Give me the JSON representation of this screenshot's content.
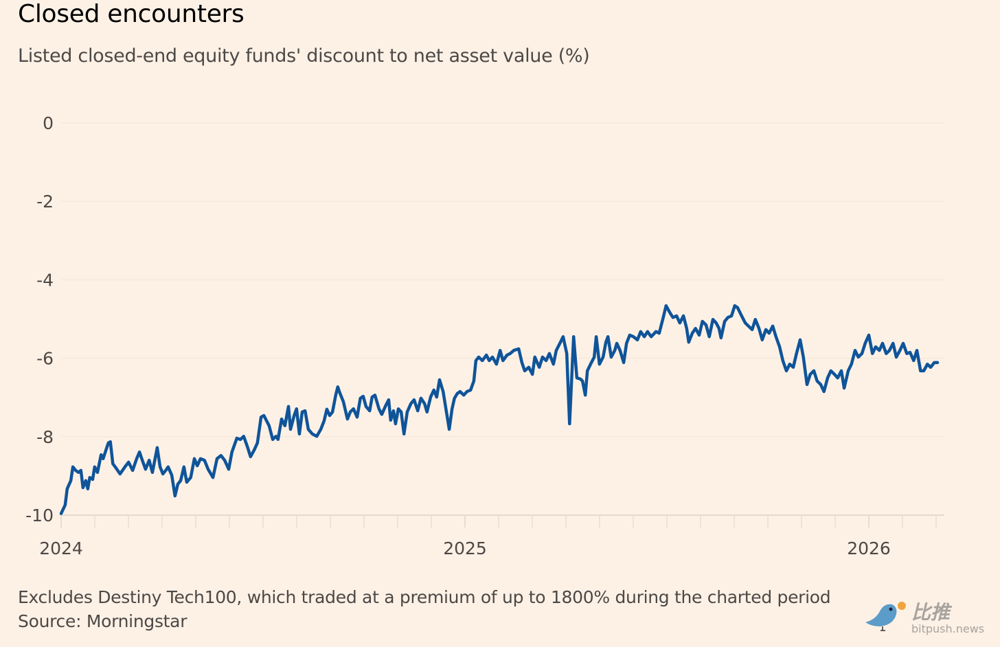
{
  "chart_data": {
    "type": "line",
    "title": "Closed encounters",
    "subtitle": "Listed closed-end equity funds' discount to net asset value (%)",
    "note": "Excludes Destiny Tech100, which traded at a premium of up to 1800% during the charted period",
    "source": "Source: Morningstar",
    "xlabel": "",
    "ylabel": "",
    "xlim": [
      2024,
      2026.19
    ],
    "ylim": [
      -10,
      0
    ],
    "x_ticks": [
      "2024",
      "2025",
      "2026"
    ],
    "y_ticks": [
      "0",
      "-2",
      "-4",
      "-6",
      "-8",
      "-10"
    ],
    "grid": "horizontal",
    "line_color": "#0f5499",
    "series": [
      {
        "points": [
          [
            2024.0,
            -9.96
          ],
          [
            2024.01,
            -9.74
          ],
          [
            2024.015,
            -9.33
          ],
          [
            2024.024,
            -9.12
          ],
          [
            2024.029,
            -8.77
          ],
          [
            2024.036,
            -8.86
          ],
          [
            2024.043,
            -8.91
          ],
          [
            2024.049,
            -8.86
          ],
          [
            2024.054,
            -9.3
          ],
          [
            2024.061,
            -9.12
          ],
          [
            2024.066,
            -9.33
          ],
          [
            2024.071,
            -9.04
          ],
          [
            2024.078,
            -9.09
          ],
          [
            2024.083,
            -8.77
          ],
          [
            2024.09,
            -8.91
          ],
          [
            2024.099,
            -8.46
          ],
          [
            2024.104,
            -8.56
          ],
          [
            2024.111,
            -8.34
          ],
          [
            2024.117,
            -8.16
          ],
          [
            2024.122,
            -8.13
          ],
          [
            2024.128,
            -8.69
          ],
          [
            2024.134,
            -8.77
          ],
          [
            2024.146,
            -8.95
          ],
          [
            2024.158,
            -8.77
          ],
          [
            2024.167,
            -8.65
          ],
          [
            2024.177,
            -8.86
          ],
          [
            2024.187,
            -8.56
          ],
          [
            2024.194,
            -8.39
          ],
          [
            2024.201,
            -8.6
          ],
          [
            2024.209,
            -8.83
          ],
          [
            2024.218,
            -8.6
          ],
          [
            2024.226,
            -8.91
          ],
          [
            2024.238,
            -8.28
          ],
          [
            2024.245,
            -8.77
          ],
          [
            2024.252,
            -8.95
          ],
          [
            2024.259,
            -8.86
          ],
          [
            2024.265,
            -8.77
          ],
          [
            2024.274,
            -8.98
          ],
          [
            2024.282,
            -9.51
          ],
          [
            2024.289,
            -9.21
          ],
          [
            2024.296,
            -9.12
          ],
          [
            2024.304,
            -8.77
          ],
          [
            2024.311,
            -9.16
          ],
          [
            2024.321,
            -9.04
          ],
          [
            2024.33,
            -8.56
          ],
          [
            2024.337,
            -8.74
          ],
          [
            2024.345,
            -8.56
          ],
          [
            2024.355,
            -8.6
          ],
          [
            2024.364,
            -8.83
          ],
          [
            2024.376,
            -9.04
          ],
          [
            2024.386,
            -8.56
          ],
          [
            2024.396,
            -8.48
          ],
          [
            2024.405,
            -8.6
          ],
          [
            2024.415,
            -8.83
          ],
          [
            2024.423,
            -8.39
          ],
          [
            2024.435,
            -8.04
          ],
          [
            2024.444,
            -8.07
          ],
          [
            2024.452,
            -7.99
          ],
          [
            2024.461,
            -8.25
          ],
          [
            2024.469,
            -8.51
          ],
          [
            2024.478,
            -8.34
          ],
          [
            2024.486,
            -8.16
          ],
          [
            2024.495,
            -7.5
          ],
          [
            2024.502,
            -7.46
          ],
          [
            2024.509,
            -7.6
          ],
          [
            2024.515,
            -7.72
          ],
          [
            2024.524,
            -8.07
          ],
          [
            2024.532,
            -7.99
          ],
          [
            2024.537,
            -8.07
          ],
          [
            2024.546,
            -7.55
          ],
          [
            2024.554,
            -7.72
          ],
          [
            2024.563,
            -7.23
          ],
          [
            2024.568,
            -7.81
          ],
          [
            2024.577,
            -7.46
          ],
          [
            2024.583,
            -7.29
          ],
          [
            2024.59,
            -7.93
          ],
          [
            2024.597,
            -7.37
          ],
          [
            2024.604,
            -7.34
          ],
          [
            2024.612,
            -7.81
          ],
          [
            2024.622,
            -7.93
          ],
          [
            2024.633,
            -7.99
          ],
          [
            2024.643,
            -7.81
          ],
          [
            2024.651,
            -7.6
          ],
          [
            2024.658,
            -7.3
          ],
          [
            2024.665,
            -7.46
          ],
          [
            2024.672,
            -7.37
          ],
          [
            2024.68,
            -6.94
          ],
          [
            2024.685,
            -6.73
          ],
          [
            2024.69,
            -6.88
          ],
          [
            2024.699,
            -7.11
          ],
          [
            2024.709,
            -7.55
          ],
          [
            2024.716,
            -7.37
          ],
          [
            2024.724,
            -7.29
          ],
          [
            2024.733,
            -7.5
          ],
          [
            2024.741,
            -7.02
          ],
          [
            2024.748,
            -6.97
          ],
          [
            2024.755,
            -7.23
          ],
          [
            2024.764,
            -7.34
          ],
          [
            2024.77,
            -6.99
          ],
          [
            2024.777,
            -6.94
          ],
          [
            2024.787,
            -7.29
          ],
          [
            2024.794,
            -7.43
          ],
          [
            2024.804,
            -7.2
          ],
          [
            2024.811,
            -7.06
          ],
          [
            2024.816,
            -7.58
          ],
          [
            2024.823,
            -7.34
          ],
          [
            2024.828,
            -7.67
          ],
          [
            2024.835,
            -7.29
          ],
          [
            2024.842,
            -7.37
          ],
          [
            2024.849,
            -7.93
          ],
          [
            2024.857,
            -7.37
          ],
          [
            2024.866,
            -7.16
          ],
          [
            2024.874,
            -7.06
          ],
          [
            2024.883,
            -7.34
          ],
          [
            2024.891,
            -7.02
          ],
          [
            2024.9,
            -7.16
          ],
          [
            2024.906,
            -7.37
          ],
          [
            2024.915,
            -6.99
          ],
          [
            2024.923,
            -6.81
          ],
          [
            2024.93,
            -6.99
          ],
          [
            2024.937,
            -6.55
          ],
          [
            2024.946,
            -6.85
          ],
          [
            2024.954,
            -7.37
          ],
          [
            2024.961,
            -7.81
          ],
          [
            2024.968,
            -7.29
          ],
          [
            2024.974,
            -7.02
          ],
          [
            2024.981,
            -6.9
          ],
          [
            2024.988,
            -6.85
          ],
          [
            2024.997,
            -6.94
          ],
          [
            2025.005,
            -6.85
          ],
          [
            2025.014,
            -6.81
          ],
          [
            2025.022,
            -6.58
          ],
          [
            2025.027,
            -6.06
          ],
          [
            2025.034,
            -5.97
          ],
          [
            2025.043,
            -6.06
          ],
          [
            2025.053,
            -5.92
          ],
          [
            2025.06,
            -6.06
          ],
          [
            2025.068,
            -5.97
          ],
          [
            2025.078,
            -6.15
          ],
          [
            2025.087,
            -5.8
          ],
          [
            2025.094,
            -6.06
          ],
          [
            2025.104,
            -5.92
          ],
          [
            2025.112,
            -5.88
          ],
          [
            2025.121,
            -5.8
          ],
          [
            2025.133,
            -5.76
          ],
          [
            2025.141,
            -6.11
          ],
          [
            2025.148,
            -6.32
          ],
          [
            2025.158,
            -6.23
          ],
          [
            2025.167,
            -6.41
          ],
          [
            2025.173,
            -5.97
          ],
          [
            2025.184,
            -6.23
          ],
          [
            2025.192,
            -5.97
          ],
          [
            2025.201,
            -6.06
          ],
          [
            2025.209,
            -5.88
          ],
          [
            2025.219,
            -6.15
          ],
          [
            2025.226,
            -5.8
          ],
          [
            2025.235,
            -5.62
          ],
          [
            2025.243,
            -5.45
          ],
          [
            2025.252,
            -5.88
          ],
          [
            2025.259,
            -7.67
          ],
          [
            2025.269,
            -5.45
          ],
          [
            2025.277,
            -6.5
          ],
          [
            2025.286,
            -6.53
          ],
          [
            2025.291,
            -6.58
          ],
          [
            2025.298,
            -6.94
          ],
          [
            2025.303,
            -6.32
          ],
          [
            2025.311,
            -6.15
          ],
          [
            2025.32,
            -5.97
          ],
          [
            2025.325,
            -5.45
          ],
          [
            2025.333,
            -6.15
          ],
          [
            2025.342,
            -5.97
          ],
          [
            2025.349,
            -5.59
          ],
          [
            2025.354,
            -5.45
          ],
          [
            2025.362,
            -5.97
          ],
          [
            2025.371,
            -5.8
          ],
          [
            2025.376,
            -5.62
          ],
          [
            2025.384,
            -5.8
          ],
          [
            2025.393,
            -6.11
          ],
          [
            2025.4,
            -5.62
          ],
          [
            2025.408,
            -5.41
          ],
          [
            2025.417,
            -5.45
          ],
          [
            2025.427,
            -5.53
          ],
          [
            2025.435,
            -5.32
          ],
          [
            2025.444,
            -5.45
          ],
          [
            2025.452,
            -5.32
          ],
          [
            2025.461,
            -5.45
          ],
          [
            2025.473,
            -5.32
          ],
          [
            2025.481,
            -5.36
          ],
          [
            2025.491,
            -4.96
          ],
          [
            2025.498,
            -4.66
          ],
          [
            2025.507,
            -4.83
          ],
          [
            2025.515,
            -4.96
          ],
          [
            2025.524,
            -4.92
          ],
          [
            2025.532,
            -5.1
          ],
          [
            2025.541,
            -4.92
          ],
          [
            2025.549,
            -5.24
          ],
          [
            2025.554,
            -5.59
          ],
          [
            2025.563,
            -5.36
          ],
          [
            2025.571,
            -5.24
          ],
          [
            2025.58,
            -5.41
          ],
          [
            2025.588,
            -5.06
          ],
          [
            2025.597,
            -5.15
          ],
          [
            2025.605,
            -5.45
          ],
          [
            2025.614,
            -5.01
          ],
          [
            2025.622,
            -5.1
          ],
          [
            2025.629,
            -5.24
          ],
          [
            2025.634,
            -5.48
          ],
          [
            2025.643,
            -5.06
          ],
          [
            2025.651,
            -4.96
          ],
          [
            2025.66,
            -4.92
          ],
          [
            2025.668,
            -4.66
          ],
          [
            2025.675,
            -4.71
          ],
          [
            2025.685,
            -4.92
          ],
          [
            2025.694,
            -5.1
          ],
          [
            2025.702,
            -5.18
          ],
          [
            2025.711,
            -5.27
          ],
          [
            2025.719,
            -5.01
          ],
          [
            2025.728,
            -5.24
          ],
          [
            2025.736,
            -5.53
          ],
          [
            2025.745,
            -5.27
          ],
          [
            2025.753,
            -5.36
          ],
          [
            2025.762,
            -5.18
          ],
          [
            2025.77,
            -5.45
          ],
          [
            2025.779,
            -5.71
          ],
          [
            2025.787,
            -6.06
          ],
          [
            2025.796,
            -6.32
          ],
          [
            2025.804,
            -6.15
          ],
          [
            2025.813,
            -6.23
          ],
          [
            2025.821,
            -5.88
          ],
          [
            2025.83,
            -5.53
          ],
          [
            2025.838,
            -5.97
          ],
          [
            2025.847,
            -6.67
          ],
          [
            2025.855,
            -6.41
          ],
          [
            2025.864,
            -6.32
          ],
          [
            2025.872,
            -6.58
          ],
          [
            2025.881,
            -6.67
          ],
          [
            2025.889,
            -6.85
          ],
          [
            2025.898,
            -6.5
          ],
          [
            2025.906,
            -6.32
          ],
          [
            2025.915,
            -6.41
          ],
          [
            2025.923,
            -6.5
          ],
          [
            2025.932,
            -6.32
          ],
          [
            2025.939,
            -6.76
          ],
          [
            2025.949,
            -6.32
          ],
          [
            2025.957,
            -6.15
          ],
          [
            2025.966,
            -5.8
          ],
          [
            2025.974,
            -5.97
          ],
          [
            2025.983,
            -5.88
          ],
          [
            2025.991,
            -5.62
          ],
          [
            2026.0,
            -5.41
          ],
          [
            2026.009,
            -5.88
          ],
          [
            2026.017,
            -5.71
          ],
          [
            2026.026,
            -5.8
          ],
          [
            2026.034,
            -5.62
          ],
          [
            2026.043,
            -5.88
          ],
          [
            2026.051,
            -5.8
          ],
          [
            2026.06,
            -5.62
          ],
          [
            2026.068,
            -5.97
          ],
          [
            2026.077,
            -5.8
          ],
          [
            2026.085,
            -5.62
          ],
          [
            2026.094,
            -5.88
          ],
          [
            2026.102,
            -5.85
          ],
          [
            2026.111,
            -6.06
          ],
          [
            2026.119,
            -5.8
          ],
          [
            2026.128,
            -6.32
          ],
          [
            2026.136,
            -6.32
          ],
          [
            2026.145,
            -6.15
          ],
          [
            2026.153,
            -6.23
          ],
          [
            2026.162,
            -6.11
          ],
          [
            2026.17,
            -6.11
          ]
        ]
      }
    ]
  },
  "watermark": {
    "cn": "比推",
    "en": "bitpush.news",
    "bird_color": "#5b9cc8",
    "coin_color": "#f0a440"
  }
}
